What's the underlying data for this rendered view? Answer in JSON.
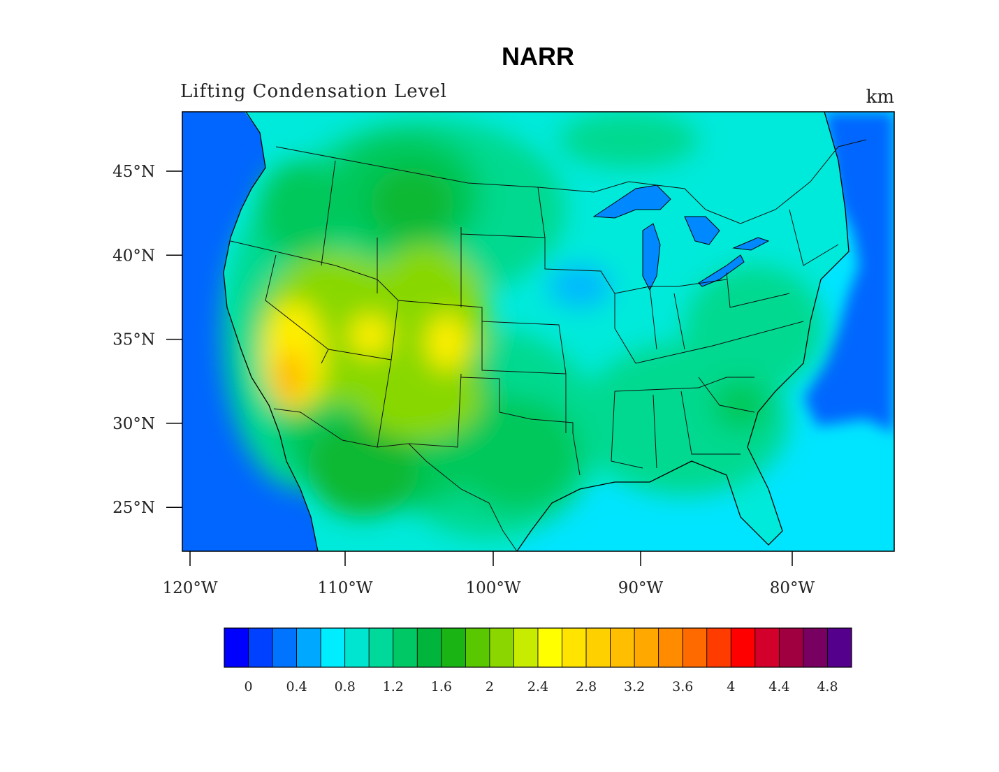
{
  "title": "NARR",
  "subtitle": "Lifting Condensation Level",
  "units": "km",
  "map": {
    "lat_ticks": [
      {
        "value": 45,
        "label": "45°N"
      },
      {
        "value": 40,
        "label": "40°N"
      },
      {
        "value": 35,
        "label": "35°N"
      },
      {
        "value": 30,
        "label": "30°N"
      },
      {
        "value": 25,
        "label": "25°N"
      }
    ],
    "lon_ticks": [
      {
        "value": -120,
        "label": "120°W"
      },
      {
        "value": -110,
        "label": "110°W"
      },
      {
        "value": -100,
        "label": "100°W"
      },
      {
        "value": -90,
        "label": "90°W"
      },
      {
        "value": -80,
        "label": "80°W"
      }
    ],
    "colors": {
      "ocean_deep": "#0066ff",
      "ocean": "#00e5ff",
      "cyan_light": "#00eadb",
      "green_light": "#00d98f",
      "green": "#00c85a",
      "green_dark": "#10b830",
      "yellow_green": "#88d800",
      "yellow": "#ffef00",
      "orange": "#ffb300"
    }
  },
  "colorbar": {
    "labels": [
      "0",
      "0.4",
      "0.8",
      "1.2",
      "1.6",
      "2",
      "2.4",
      "2.8",
      "3.2",
      "3.6",
      "4",
      "4.4",
      "4.8"
    ],
    "colors": [
      "#0000ff",
      "#0040ff",
      "#0073ff",
      "#00a8ff",
      "#00ecff",
      "#00e5d0",
      "#00d99a",
      "#00c864",
      "#00b43c",
      "#1ab414",
      "#5ac800",
      "#8cd600",
      "#c8ec00",
      "#ffff00",
      "#ffe400",
      "#ffd000",
      "#ffbe00",
      "#ffa800",
      "#ff8c00",
      "#ff6a00",
      "#ff3c00",
      "#ff0000",
      "#d2002a",
      "#a00040",
      "#780060",
      "#55008c"
    ]
  }
}
